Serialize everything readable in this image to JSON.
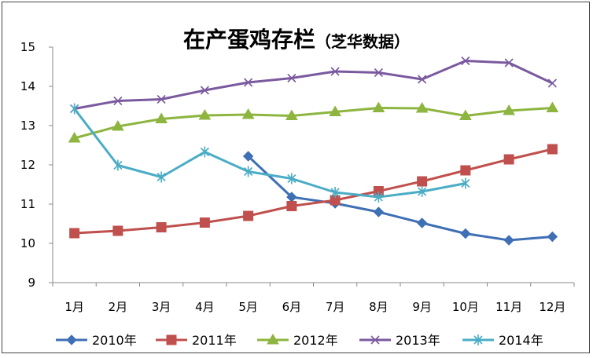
{
  "chart_data": {
    "type": "line",
    "title": "在产蛋鸡存栏",
    "subtitle": "（芝华数据）",
    "xlabel": "",
    "ylabel": "",
    "categories": [
      "1月",
      "2月",
      "3月",
      "4月",
      "5月",
      "6月",
      "7月",
      "8月",
      "9月",
      "10月",
      "11月",
      "12月"
    ],
    "ylim": [
      9,
      15
    ],
    "yticks": [
      9,
      10,
      11,
      12,
      13,
      14,
      15
    ],
    "grid": false,
    "legend_position": "bottom",
    "series": [
      {
        "name": "2010年",
        "color": "#3f6fb5",
        "marker": "diamond",
        "values": [
          null,
          null,
          null,
          null,
          12.22,
          11.18,
          11.02,
          10.8,
          10.52,
          10.25,
          10.08,
          10.17
        ]
      },
      {
        "name": "2011年",
        "color": "#c0504d",
        "marker": "square",
        "values": [
          10.26,
          10.32,
          10.41,
          10.53,
          10.7,
          10.95,
          11.1,
          11.33,
          11.58,
          11.86,
          12.14,
          12.4
        ]
      },
      {
        "name": "2012年",
        "color": "#8db53f",
        "marker": "triangle",
        "values": [
          12.68,
          12.98,
          13.17,
          13.26,
          13.28,
          13.25,
          13.35,
          13.45,
          13.44,
          13.25,
          13.38,
          13.45
        ]
      },
      {
        "name": "2013年",
        "color": "#7a5a9e",
        "marker": "x",
        "values": [
          13.43,
          13.63,
          13.67,
          13.9,
          14.1,
          14.21,
          14.38,
          14.35,
          14.18,
          14.65,
          14.6,
          14.08
        ]
      },
      {
        "name": "2014年",
        "color": "#4bacc6",
        "marker": "star",
        "values": [
          13.43,
          11.99,
          11.69,
          12.33,
          11.83,
          11.65,
          11.3,
          11.18,
          11.32,
          11.53,
          null,
          null
        ]
      }
    ]
  }
}
